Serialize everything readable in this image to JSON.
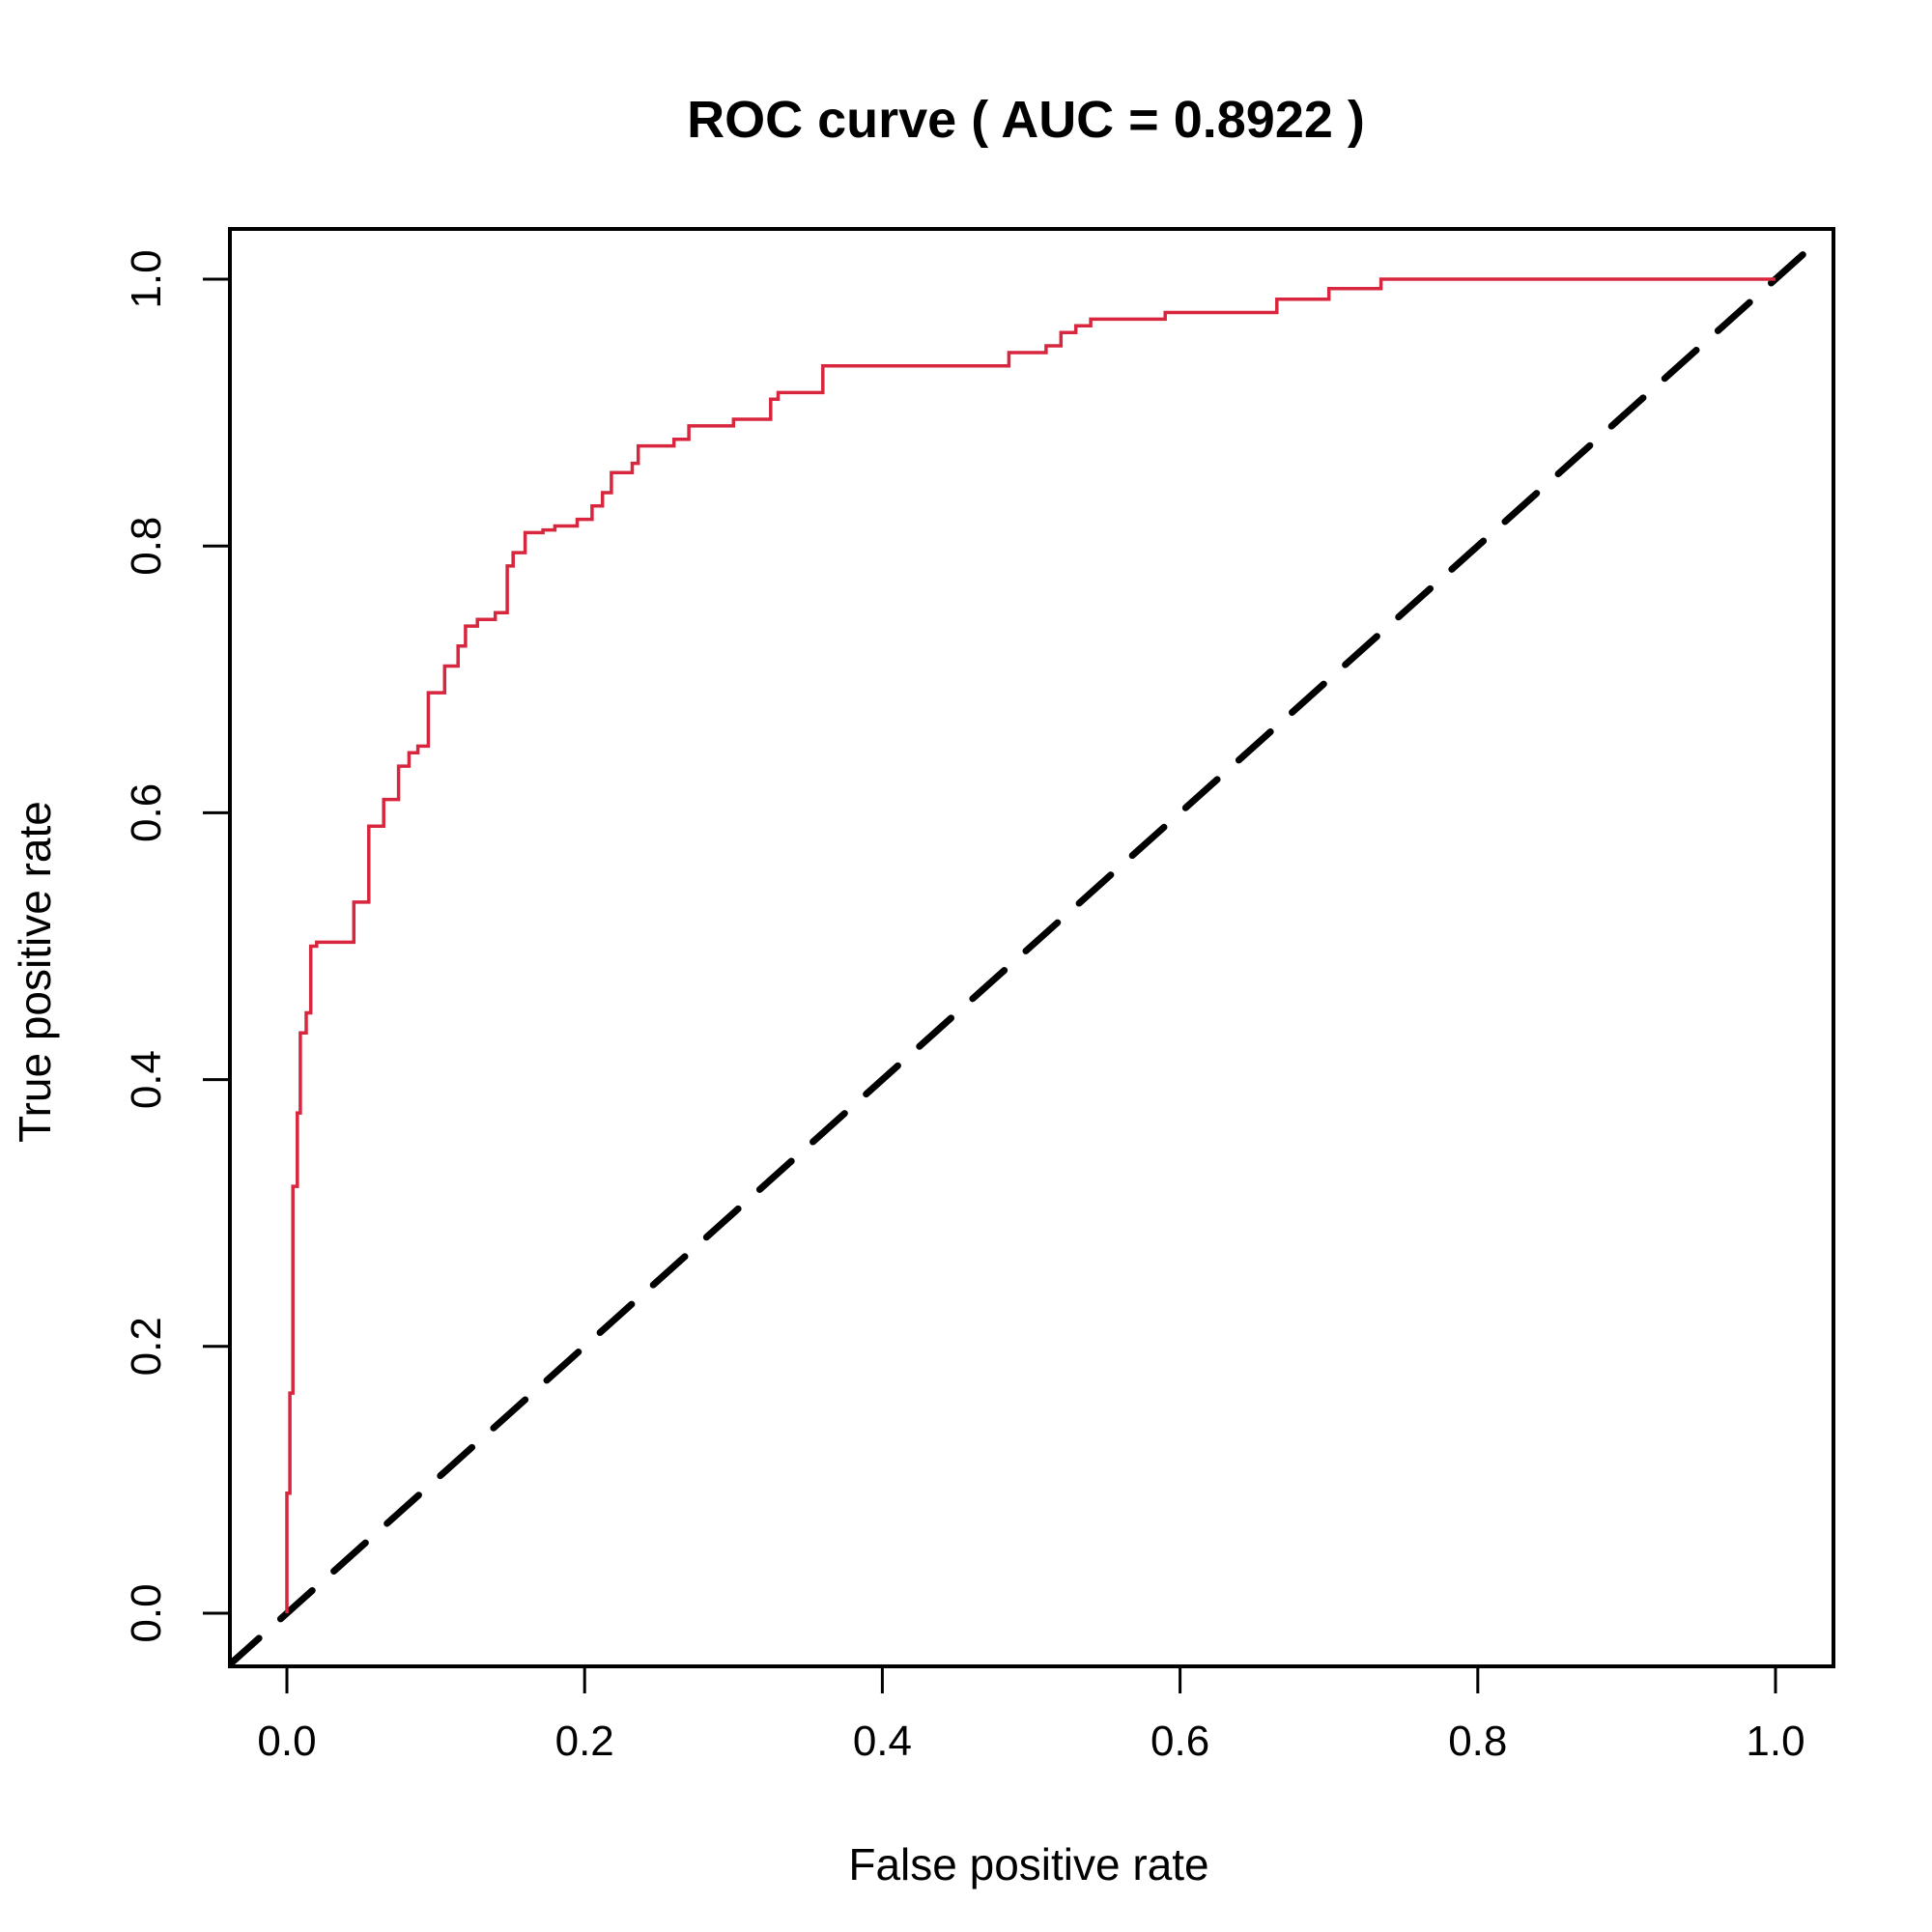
{
  "chart_data": {
    "type": "line",
    "title": "ROC curve ( AUC =  0.8922 )",
    "xlabel": "False positive rate",
    "ylabel": "True positive rate",
    "xlim": [
      0,
      1
    ],
    "ylim": [
      0,
      1
    ],
    "xticks": [
      "0.0",
      "0.2",
      "0.4",
      "0.6",
      "0.8",
      "1.0"
    ],
    "yticks": [
      "0.0",
      "0.2",
      "0.4",
      "0.6",
      "0.8",
      "1.0"
    ],
    "grid": false,
    "colors": {
      "roc": "#d7263d",
      "reference": "#000000"
    },
    "series": [
      {
        "style": "solid-step",
        "x": [
          0.0,
          0.0,
          0.002,
          0.002,
          0.004,
          0.004,
          0.007,
          0.007,
          0.009,
          0.009,
          0.013,
          0.013,
          0.016,
          0.016,
          0.02,
          0.02,
          0.025,
          0.025,
          0.04,
          0.045,
          0.045,
          0.055,
          0.055,
          0.065,
          0.065,
          0.075,
          0.075,
          0.082,
          0.082,
          0.088,
          0.088,
          0.095,
          0.095,
          0.106,
          0.106,
          0.115,
          0.115,
          0.12,
          0.12,
          0.128,
          0.128,
          0.14,
          0.14,
          0.148,
          0.148,
          0.152,
          0.152,
          0.16,
          0.16,
          0.172,
          0.172,
          0.18,
          0.18,
          0.195,
          0.195,
          0.205,
          0.205,
          0.212,
          0.212,
          0.218,
          0.218,
          0.232,
          0.232,
          0.236,
          0.236,
          0.26,
          0.26,
          0.27,
          0.27,
          0.3,
          0.3,
          0.325,
          0.325,
          0.33,
          0.33,
          0.36,
          0.36,
          0.37,
          0.37,
          0.485,
          0.485,
          0.51,
          0.51,
          0.52,
          0.52,
          0.53,
          0.53,
          0.54,
          0.54,
          0.59,
          0.59,
          0.665,
          0.665,
          0.7,
          0.7,
          0.735,
          0.735,
          1.0
        ],
        "y": [
          0.0,
          0.09,
          0.09,
          0.165,
          0.165,
          0.32,
          0.32,
          0.375,
          0.375,
          0.435,
          0.435,
          0.45,
          0.45,
          0.5,
          0.5,
          0.503,
          0.503,
          0.503,
          0.503,
          0.503,
          0.533,
          0.533,
          0.59,
          0.59,
          0.61,
          0.61,
          0.635,
          0.635,
          0.645,
          0.645,
          0.65,
          0.65,
          0.69,
          0.69,
          0.71,
          0.71,
          0.725,
          0.725,
          0.74,
          0.74,
          0.745,
          0.745,
          0.75,
          0.75,
          0.785,
          0.785,
          0.795,
          0.795,
          0.81,
          0.81,
          0.812,
          0.812,
          0.815,
          0.815,
          0.82,
          0.82,
          0.83,
          0.83,
          0.84,
          0.84,
          0.855,
          0.855,
          0.862,
          0.862,
          0.875,
          0.875,
          0.88,
          0.88,
          0.89,
          0.89,
          0.895,
          0.895,
          0.91,
          0.91,
          0.915,
          0.915,
          0.935,
          0.935,
          0.935,
          0.935,
          0.945,
          0.945,
          0.95,
          0.95,
          0.96,
          0.96,
          0.965,
          0.965,
          0.97,
          0.97,
          0.975,
          0.975,
          0.985,
          0.985,
          0.993,
          0.993,
          1.0,
          1.0
        ]
      },
      {
        "style": "dashed",
        "x": [
          -0.04,
          1.025
        ],
        "y": [
          -0.04,
          1.025
        ]
      }
    ]
  }
}
